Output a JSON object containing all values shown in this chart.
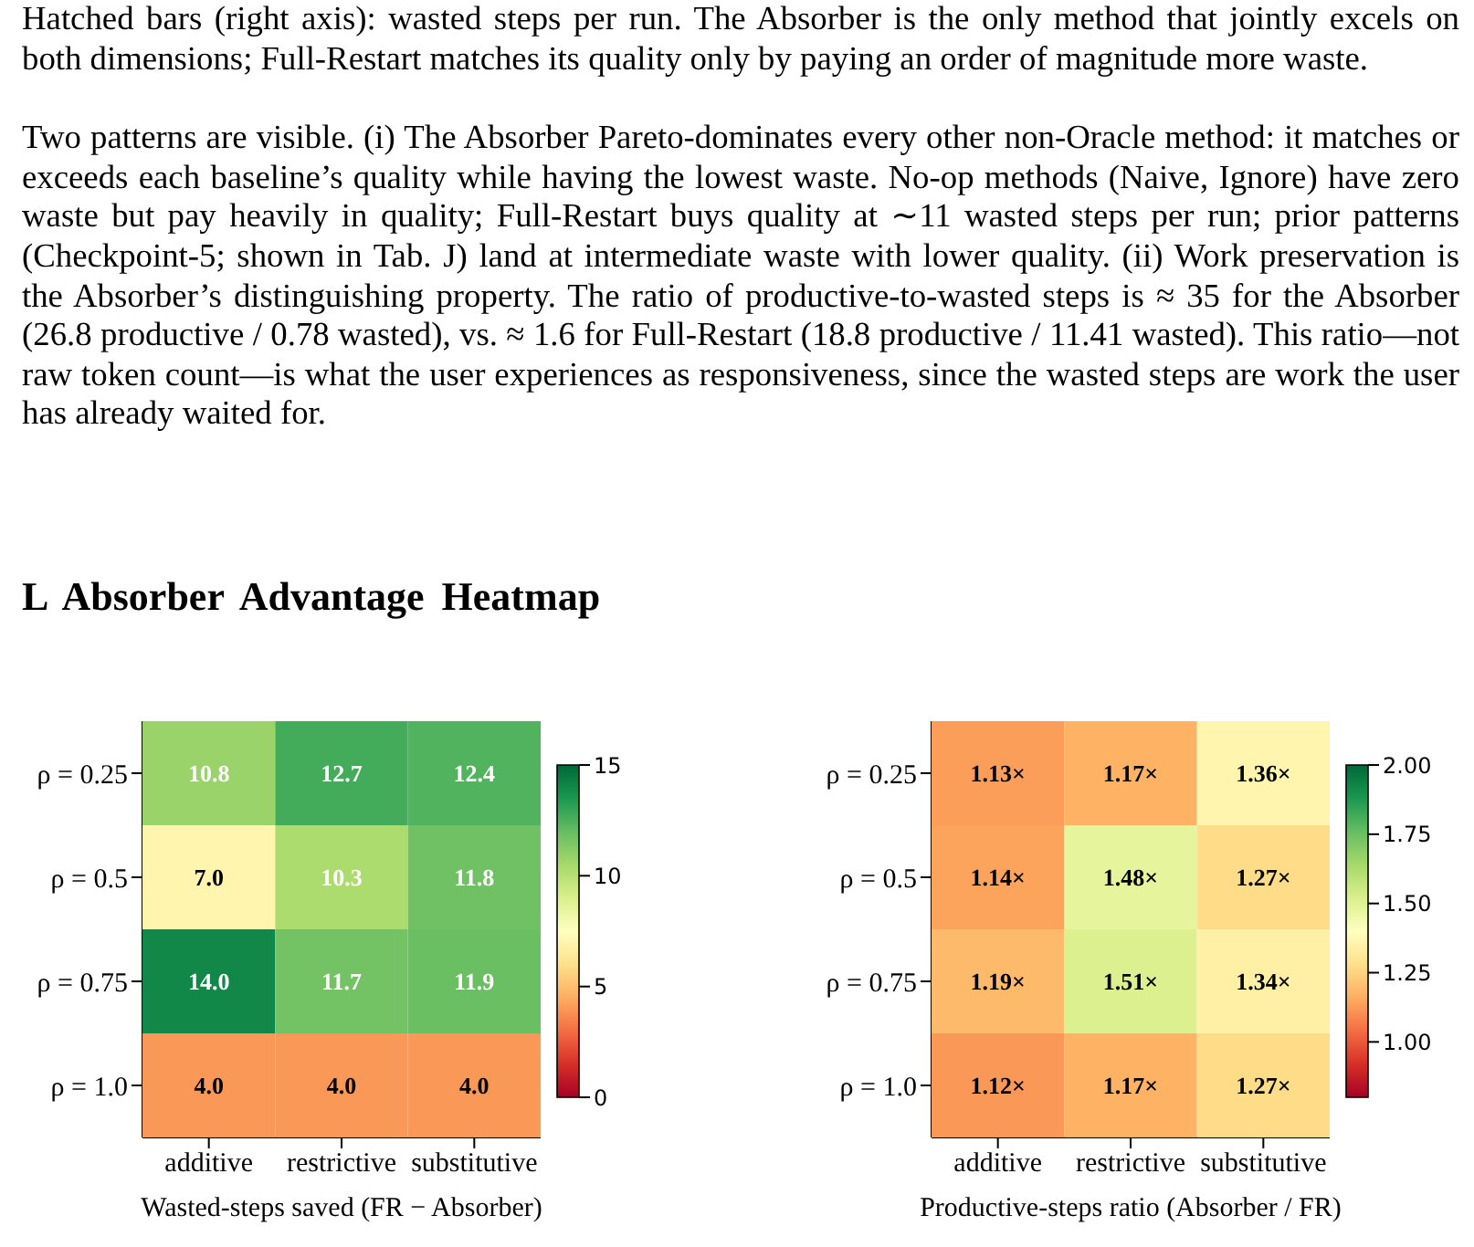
{
  "chart_data": [
    {
      "type": "heatmap",
      "title": "L Absorber Advantage Heatmap",
      "annotations": [
        "Hatched bars (right axis): wasted steps per run. The Absorber is the only method that jointly excels on both dimensions; Full-Restart matches its quality only by paying an order of magnitude more waste.",
        "Two patterns are visible. (i) The Absorber Pareto-dominates every other non-Oracle method: it matches or exceeds each baseline’s quality while having the lowest waste. No-op methods (Naive, Ignore) have zero waste but pay heavily in quality; Full-Restart buys quality at ∼11 wasted steps per run; prior patterns (Checkpoint-5; shown in Tab. J) land at intermediate waste with lower quality. (ii) Work preservation is the Absorber’s distinguishing property. The ratio of productive-to-wasted steps is ≈ 35 for the Absorber (26.8 productive / 0.78 wasted), vs. ≈ 1.6 for Full-Restart (18.8 productive / 11.41 wasted). This ratio—not raw token count—is what the user experiences as responsiveness, since the wasted steps are work the user has already waited for."
      ],
      "xlabel": "Wasted-steps saved (FR − Absorber)",
      "categories": [
        "additive",
        "restrictive",
        "substitutive"
      ],
      "y_categories": [
        "ρ = 0.25",
        "ρ = 0.5",
        "ρ = 0.75",
        "ρ = 1.0"
      ],
      "cells": [
        [
          10.8,
          12.7,
          12.4
        ],
        [
          7.0,
          10.3,
          11.8
        ],
        [
          14.0,
          11.7,
          11.9
        ],
        [
          4.0,
          4.0,
          4.0
        ]
      ],
      "cell_labels": [
        [
          "10.8",
          "12.7",
          "12.4"
        ],
        [
          "7.0",
          "10.3",
          "11.8"
        ],
        [
          "14.0",
          "11.7",
          "11.9"
        ],
        [
          "4.0",
          "4.0",
          "4.0"
        ]
      ],
      "clim": [
        0,
        15
      ],
      "cticks": [
        0,
        5,
        10,
        15
      ]
    },
    {
      "type": "heatmap",
      "xlabel": "Productive-steps ratio (Absorber / FR)",
      "categories": [
        "additive",
        "restrictive",
        "substitutive"
      ],
      "y_categories": [
        "ρ = 0.25",
        "ρ = 0.5",
        "ρ = 0.75",
        "ρ = 1.0"
      ],
      "cells": [
        [
          1.13,
          1.17,
          1.36
        ],
        [
          1.14,
          1.48,
          1.27
        ],
        [
          1.19,
          1.51,
          1.34
        ],
        [
          1.12,
          1.17,
          1.27
        ]
      ],
      "cell_labels": [
        [
          "1.13×",
          "1.17×",
          "1.36×"
        ],
        [
          "1.14×",
          "1.48×",
          "1.27×"
        ],
        [
          "1.19×",
          "1.51×",
          "1.34×"
        ],
        [
          "1.12×",
          "1.17×",
          "1.27×"
        ]
      ],
      "clim": [
        0.8,
        2.0
      ],
      "cticks": [
        {
          "value": 1,
          "label": "1.00"
        },
        {
          "value": 1.25,
          "label": "1.25"
        },
        {
          "value": 1.5,
          "label": "1.50"
        },
        {
          "value": 1.75,
          "label": "1.75"
        },
        {
          "value": 2,
          "label": "2.00"
        }
      ]
    }
  ]
}
